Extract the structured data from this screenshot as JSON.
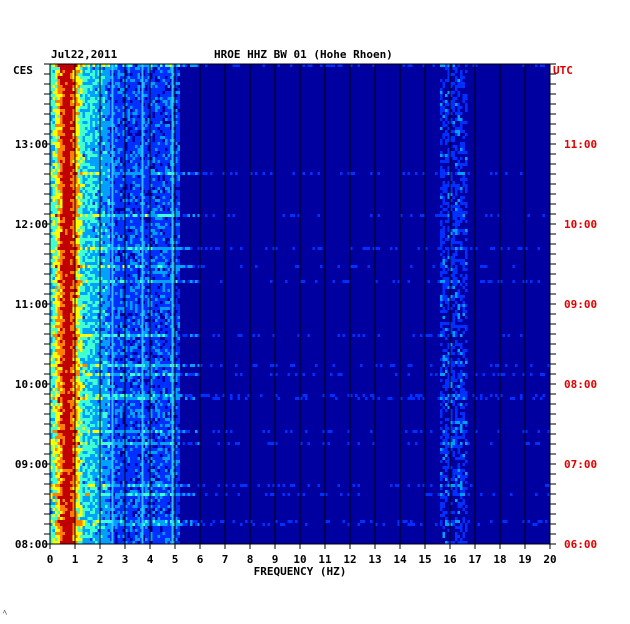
{
  "header": {
    "date": "Jul22,2011",
    "station": "HROE HHZ BW 01 (Hohe Rhoen)"
  },
  "left_timezone": "CES",
  "right_timezone": "UTC",
  "colors": {
    "background": "#0000a0",
    "utc_labels": "#e00000",
    "grid": "#000000"
  },
  "chart_data": {
    "type": "heatmap",
    "title": "HROE HHZ BW 01 (Hohe Rhoen)",
    "xlabel": "FREQUENCY (HZ)",
    "ylabel_left": "CES",
    "ylabel_right": "UTC",
    "xlim": [
      0,
      20
    ],
    "x_ticks": [
      "0",
      "1",
      "2",
      "3",
      "4",
      "5",
      "6",
      "7",
      "8",
      "9",
      "10",
      "11",
      "12",
      "13",
      "14",
      "15",
      "16",
      "17",
      "18",
      "19",
      "20"
    ],
    "y_ticks_left": [
      "13:00",
      "12:00",
      "11:00",
      "10:00",
      "09:00",
      "08:00"
    ],
    "y_ticks_right": [
      "11:00",
      "10:00",
      "09:00",
      "08:00",
      "07:00",
      "06:00"
    ],
    "time_range_local": [
      "08:00",
      "13:50"
    ],
    "dominant_band_hz": [
      0.3,
      1.0
    ],
    "persistent_lines_hz": [
      2.5,
      3.7,
      4.9
    ],
    "secondary_band_hz": [
      15.6,
      16.6
    ],
    "colorscale": [
      "#0000a0",
      "#0030ff",
      "#00a0ff",
      "#40ffd0",
      "#ffff00",
      "#ff8000",
      "#c00000"
    ]
  },
  "footer_mark": "ﾍ"
}
